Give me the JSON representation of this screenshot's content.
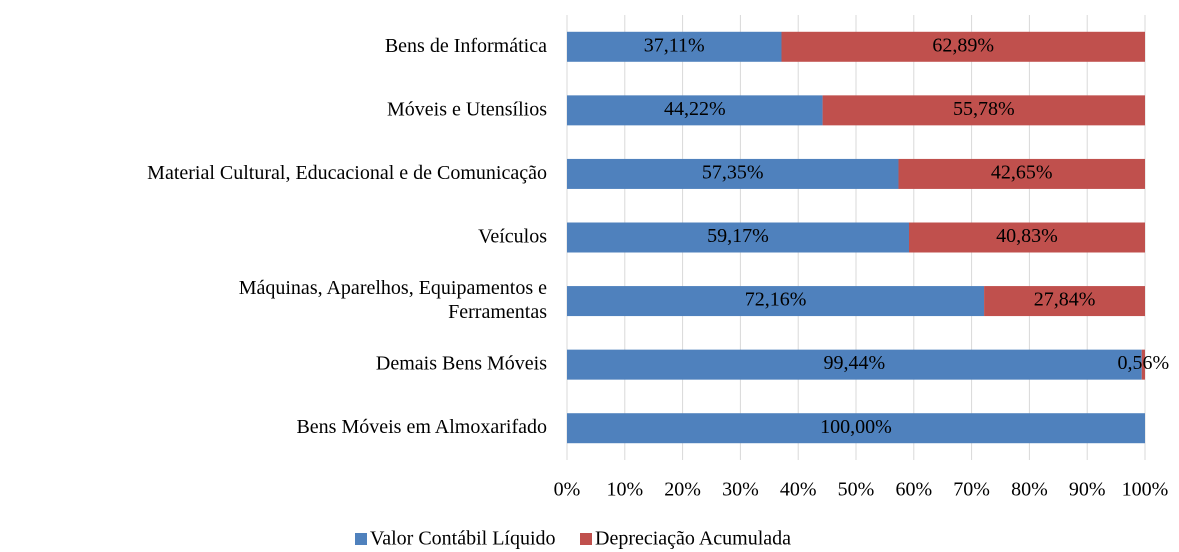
{
  "chart_data": {
    "type": "stacked_bar_horizontal",
    "categories": [
      "Bens de Informática",
      "Móveis e Utensílios",
      "Material Cultural, Educacional e de Comunicação",
      "Veículos",
      "Máquinas, Aparelhos, Equipamentos e\nFerramentas",
      "Demais Bens Móveis",
      "Bens Móveis em Almoxarifado"
    ],
    "series": [
      {
        "name": "Valor Contábil Líquido",
        "color": "#4f81bd",
        "values": [
          37.11,
          44.22,
          57.35,
          59.17,
          72.16,
          99.44,
          100
        ],
        "value_labels": [
          "37,11%",
          "44,22%",
          "57,35%",
          "59,17%",
          "72,16%",
          "99,44%",
          "100,00%"
        ]
      },
      {
        "name": "Depreciação Acumulada",
        "color": "#c0504d",
        "values": [
          62.89,
          55.78,
          42.65,
          40.83,
          27.84,
          0.56,
          0
        ],
        "value_labels": [
          "62,89%",
          "55,78%",
          "42,65%",
          "40,83%",
          "27,84%",
          "0,56%",
          null
        ]
      }
    ],
    "xlim": [
      0,
      100
    ],
    "xticks": [
      {
        "value": 0,
        "label": "0%"
      },
      {
        "value": 10,
        "label": "10%"
      },
      {
        "value": 20,
        "label": "20%"
      },
      {
        "value": 30,
        "label": "30%"
      },
      {
        "value": 40,
        "label": "40%"
      },
      {
        "value": 50,
        "label": "50%"
      },
      {
        "value": 60,
        "label": "60%"
      },
      {
        "value": 70,
        "label": "70%"
      },
      {
        "value": 80,
        "label": "80%"
      },
      {
        "value": 90,
        "label": "90%"
      },
      {
        "value": 100,
        "label": "100%"
      }
    ],
    "grid": true,
    "legend": "bottom"
  }
}
